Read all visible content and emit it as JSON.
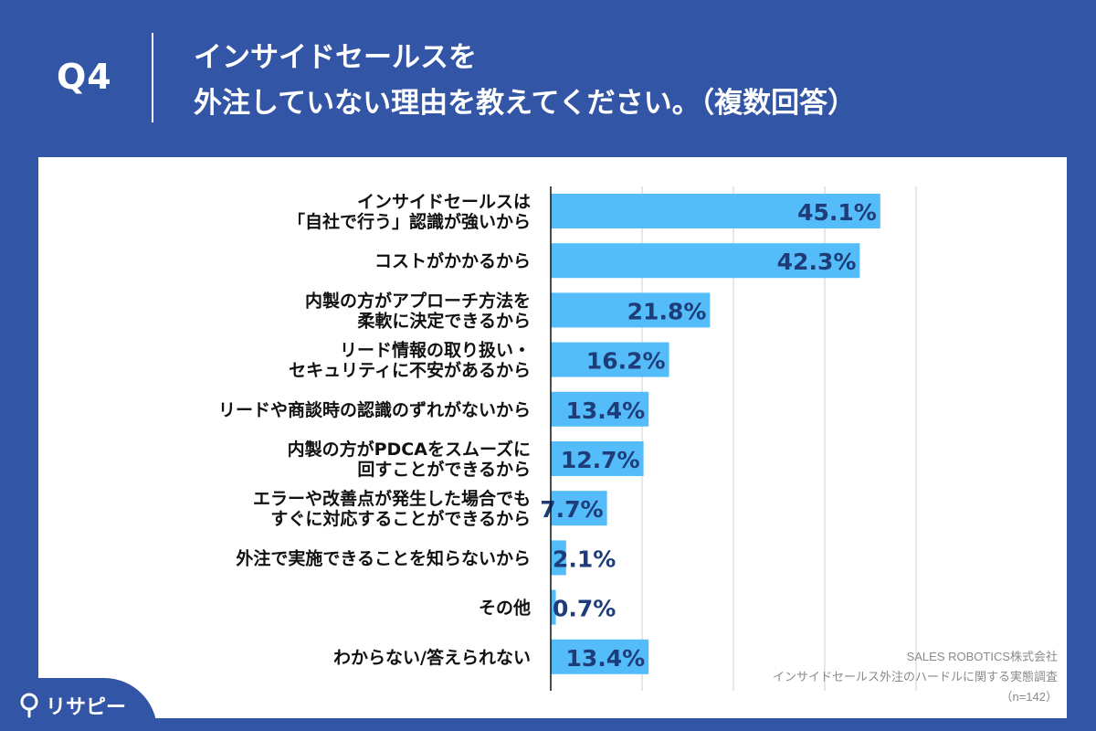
{
  "header": {
    "question_number": "Q4",
    "title_line1": "インサイドセールスを",
    "title_line2": "外注していない理由を教えてください。（複数回答）"
  },
  "chart_data": {
    "type": "bar",
    "orientation": "horizontal",
    "categories": [
      [
        "インサイドセールスは",
        "「自社で行う」認識が強いから"
      ],
      [
        "コストがかかるから"
      ],
      [
        "内製の方がアプローチ方法を",
        "柔軟に決定できるから"
      ],
      [
        "リード情報の取り扱い・",
        "セキュリティに不安があるから"
      ],
      [
        "リードや商談時の認識のずれがないから"
      ],
      [
        "内製の方がPDCAをスムーズに",
        "回すことができるから"
      ],
      [
        "エラーや改善点が発生した場合でも",
        "すぐに対応することができるから"
      ],
      [
        "外注で実施できることを知らないから"
      ],
      [
        "その他"
      ],
      [
        "わからない/答えられない"
      ]
    ],
    "values": [
      45.1,
      42.3,
      21.8,
      16.2,
      13.4,
      12.7,
      7.7,
      2.1,
      0.7,
      13.4
    ],
    "value_labels": [
      "45.1%",
      "42.3%",
      "21.8%",
      "16.2%",
      "13.4%",
      "12.7%",
      "7.7%",
      "2.1%",
      "0.7%",
      "13.4%"
    ],
    "xlim": [
      0,
      50
    ],
    "gridlines": [
      12.5,
      25,
      37.5,
      50
    ],
    "grid": true,
    "bar_color": "#55bcfa",
    "label_color": "#1e3c78"
  },
  "notes": {
    "source": "SALES ROBOTICS株式会社",
    "survey": "インサイドセールス外注のハードルに関する実態調査",
    "sample": "（n=142）"
  },
  "logo": {
    "text": "リサピー"
  },
  "colors": {
    "background": "#3355a6",
    "panel": "#ffffff",
    "bar": "#55bcfa"
  }
}
